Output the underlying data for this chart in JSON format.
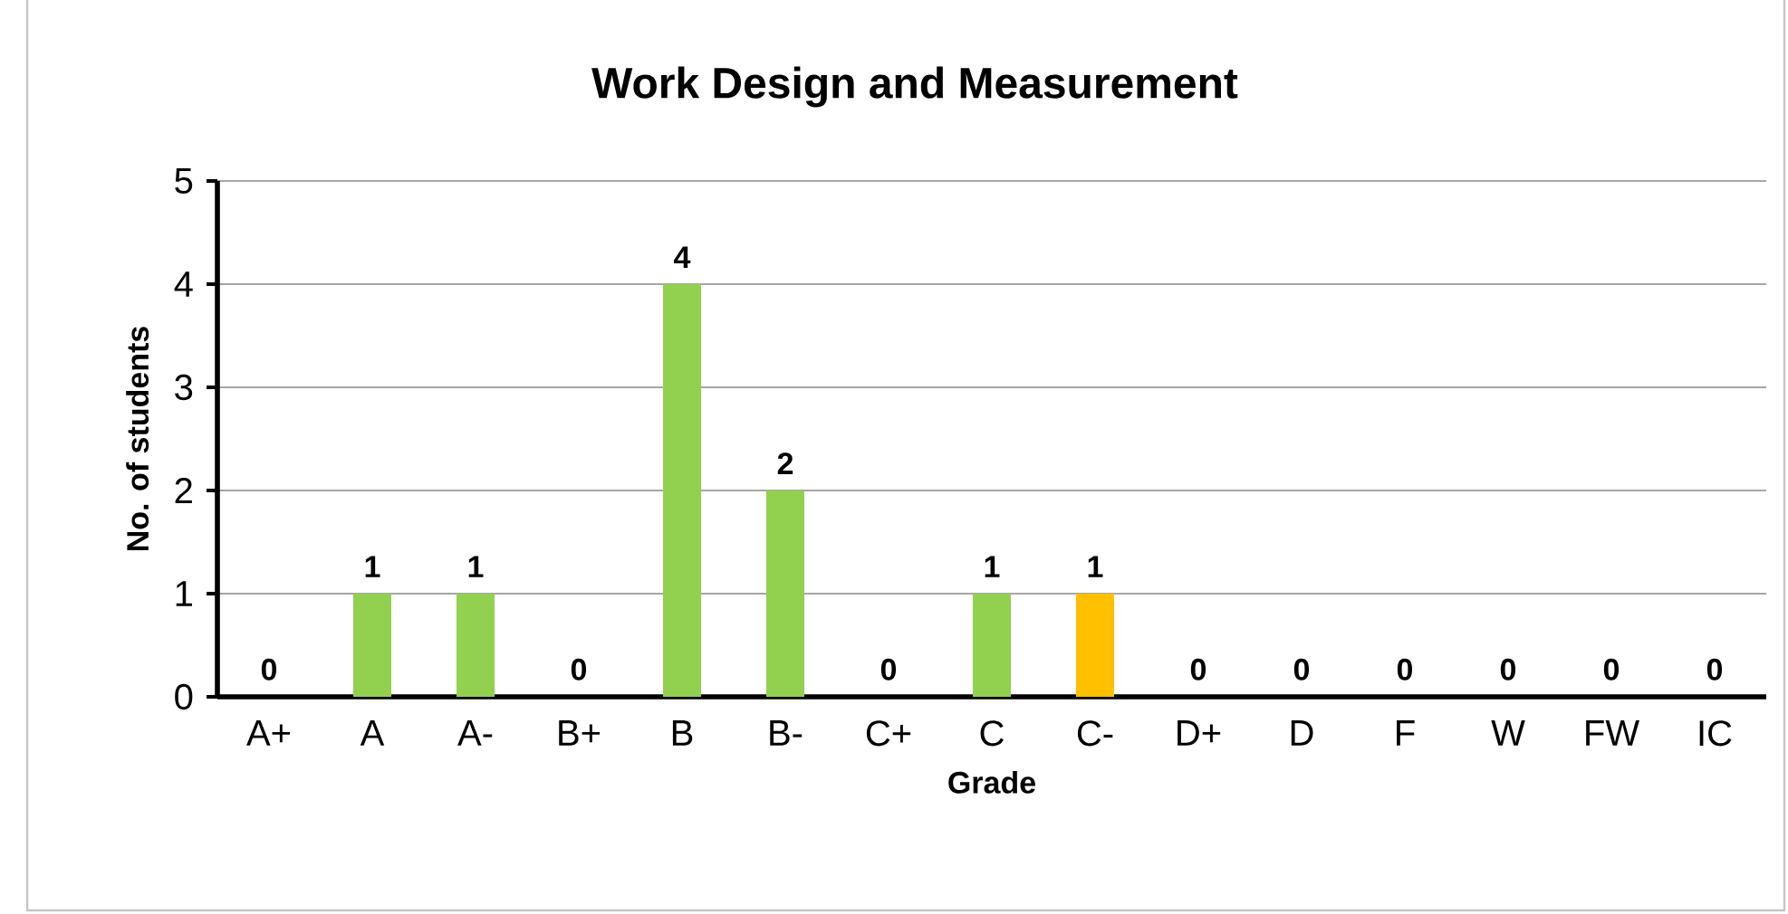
{
  "chart_data": {
    "type": "bar",
    "title": "Work Design and Measurement",
    "xlabel": "Grade",
    "ylabel": "No. of students",
    "categories": [
      "A+",
      "A",
      "A-",
      "B+",
      "B",
      "B-",
      "C+",
      "C",
      "C-",
      "D+",
      "D",
      "F",
      "W",
      "FW",
      "IC"
    ],
    "values": [
      0,
      1,
      1,
      0,
      4,
      2,
      0,
      1,
      1,
      0,
      0,
      0,
      0,
      0,
      0
    ],
    "colors": [
      "#92d050",
      "#92d050",
      "#92d050",
      "#92d050",
      "#92d050",
      "#92d050",
      "#92d050",
      "#92d050",
      "#ffc000",
      "#92d050",
      "#92d050",
      "#92d050",
      "#92d050",
      "#92d050",
      "#92d050"
    ],
    "ylim": [
      0,
      5
    ],
    "yticks": [
      0,
      1,
      2,
      3,
      4,
      5
    ],
    "grid": "y",
    "data_labels": true
  }
}
